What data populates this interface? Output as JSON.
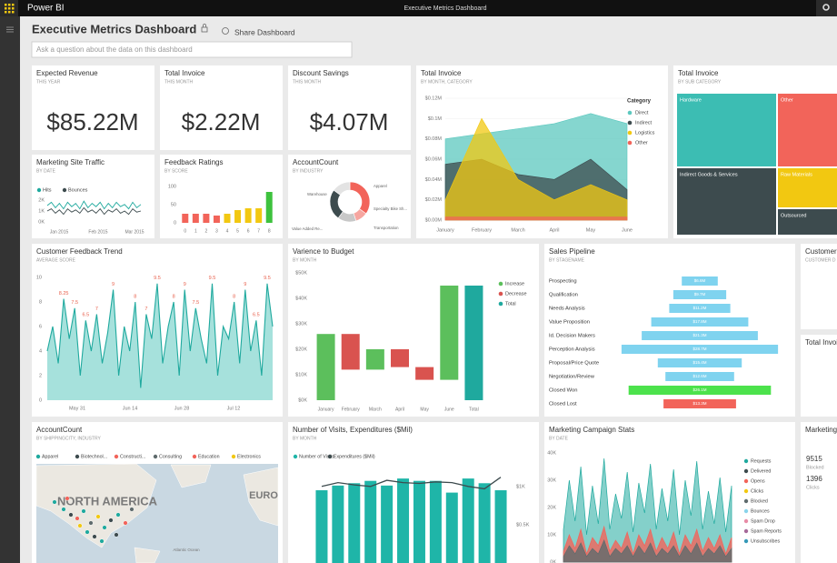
{
  "app": {
    "brand": "Power BI",
    "window_title": "Executive Metrics Dashboard"
  },
  "header": {
    "title": "Executive Metrics Dashboard",
    "share": "Share Dashboard",
    "qna_placeholder": "Ask a question about the data on this dashboard"
  },
  "cards": [
    {
      "title": "Expected Revenue",
      "subtitle": "THIS YEAR",
      "value": "$85.22M"
    },
    {
      "title": "Total Invoice",
      "subtitle": "THIS MONTH",
      "value": "$2.22M"
    },
    {
      "title": "Discount Savings",
      "subtitle": "THIS MONTH",
      "value": "$4.07M"
    }
  ],
  "invoice_area": {
    "type": "area",
    "title": "Total Invoice",
    "subtitle": "BY MONTH, CATEGORY",
    "categories": [
      "January",
      "February",
      "March",
      "April",
      "May",
      "June"
    ],
    "ylim": [
      0,
      0.12
    ],
    "yticks": [
      {
        "value": 0,
        "label": "$0.00M"
      },
      {
        "value": 0.02,
        "label": "$0.02M"
      },
      {
        "value": 0.04,
        "label": "$0.04M"
      },
      {
        "value": 0.06,
        "label": "$0.06M"
      },
      {
        "value": 0.08,
        "label": "$0.08M"
      },
      {
        "value": 0.1,
        "label": "$0.1M"
      },
      {
        "value": 0.12,
        "label": "$0.12M"
      }
    ],
    "legend_title": "Category",
    "series": [
      {
        "name": "Direct",
        "color": "#5cc8bf",
        "values": [
          0.08,
          0.085,
          0.09,
          0.095,
          0.105,
          0.095
        ]
      },
      {
        "name": "Indirect",
        "color": "#3d4b4e",
        "values": [
          0.055,
          0.06,
          0.045,
          0.04,
          0.06,
          0.03
        ]
      },
      {
        "name": "Logistics",
        "color": "#f2c811",
        "values": [
          0.02,
          0.1,
          0.04,
          0.02,
          0.035,
          0.02
        ]
      },
      {
        "name": "Other",
        "color": "#f2645a",
        "values": [
          0.003,
          0.003,
          0.003,
          0.003,
          0.003,
          0.003
        ]
      }
    ]
  },
  "invoice_treemap": {
    "title": "Total Invoice",
    "subtitle": "BY SUB CATEGORY",
    "cells": [
      "Hardware",
      "Other",
      "Indirect Goods & Services",
      "Raw Materials",
      "Outsourced"
    ]
  },
  "site_traffic": {
    "type": "line",
    "title": "Marketing Site Traffic",
    "subtitle": "BY DATE",
    "x_labels": [
      "Jan 2015",
      "Feb 2015",
      "Mar 2015"
    ],
    "ylim": [
      0,
      2
    ],
    "yticks": [
      {
        "value": 0,
        "label": "0K"
      },
      {
        "value": 1,
        "label": "1K"
      },
      {
        "value": 2,
        "label": "2K"
      }
    ],
    "series": [
      {
        "name": "Hits",
        "color": "#1fa99e",
        "values": [
          1.5,
          1.8,
          1.3,
          1.7,
          1.2,
          1.8,
          1.4,
          1.7,
          1.2,
          1.9,
          1.3,
          1.7,
          1.4,
          1.8,
          1.2,
          1.7,
          1.3,
          1.8,
          1.4,
          1.6,
          1.2,
          1.8,
          1.3,
          1.6
        ]
      },
      {
        "name": "Bounces",
        "color": "#3d4b4e",
        "values": [
          1.0,
          1.2,
          0.8,
          1.1,
          0.7,
          1.2,
          0.9,
          1.1,
          0.8,
          1.3,
          0.9,
          1.1,
          0.8,
          1.2,
          0.7,
          1.1,
          0.9,
          1.2,
          0.8,
          1.0,
          0.7,
          1.2,
          0.9,
          1.0
        ]
      }
    ]
  },
  "feedback_ratings": {
    "type": "bar",
    "title": "Feedback Ratings",
    "subtitle": "BY SCORE",
    "categories": [
      "0",
      "1",
      "2",
      "3",
      "4",
      "5",
      "6",
      "7",
      "8"
    ],
    "values": [
      25,
      25,
      25,
      20,
      25,
      35,
      40,
      40,
      85
    ],
    "colors": [
      "#f2645a",
      "#f2645a",
      "#f2645a",
      "#f2645a",
      "#f2c811",
      "#f2c811",
      "#f2c811",
      "#f2c811",
      "#3ec23e"
    ],
    "ylim": [
      0,
      100
    ],
    "yticks": [
      0,
      50,
      100
    ]
  },
  "account_donut": {
    "type": "pie",
    "title": "AccountCount",
    "subtitle": "BY INDUSTRY",
    "categories": [
      "Warehouse",
      "Apparel",
      "Specialty Bike Sh...",
      "Transportation",
      "Value Added Re..."
    ],
    "values": [
      35,
      10,
      15,
      25,
      15
    ],
    "colors": [
      "#f2645a",
      "#f6a6a0",
      "#c8c8c8",
      "#3d4b4e",
      "#e3e3e3"
    ]
  },
  "feedback_trend": {
    "type": "area",
    "title": "Customer Feedback Trend",
    "subtitle": "AVERAGE SCORE",
    "x_labels": [
      "May 31",
      "Jun 14",
      "Jun 28",
      "Jul 12"
    ],
    "ylim": [
      0,
      10
    ],
    "yticks": [
      0,
      2,
      4,
      6,
      8,
      10
    ],
    "color": "#1fa99e",
    "values": [
      4,
      6,
      3,
      8.25,
      5,
      7.5,
      2,
      6.5,
      4,
      7,
      3,
      5.5,
      9,
      2,
      6,
      4,
      8,
      1,
      7,
      5,
      9.5,
      3,
      6,
      8,
      2,
      9,
      4,
      7.5,
      5,
      3,
      9.5,
      2,
      6,
      5,
      8,
      3,
      9,
      4,
      6.5,
      2,
      9.5,
      6
    ],
    "value_labels": [
      null,
      null,
      null,
      "8.25",
      null,
      "7.5",
      null,
      "6.5",
      null,
      "7",
      null,
      null,
      "9",
      null,
      null,
      null,
      "8",
      null,
      "7",
      null,
      "9.5",
      null,
      null,
      "8",
      null,
      "9",
      null,
      "7.5",
      null,
      null,
      "9.5",
      null,
      null,
      null,
      "8",
      null,
      "9",
      null,
      "6.5",
      null,
      "9.5",
      null
    ]
  },
  "variance": {
    "type": "waterfall",
    "title": "Varience to Budget",
    "subtitle": "BY MONTH",
    "categories": [
      "January",
      "February",
      "March",
      "April",
      "May",
      "June",
      "Total"
    ],
    "values": [
      26,
      -14,
      8,
      -7,
      -5,
      37,
      45
    ],
    "ylim": [
      0,
      50
    ],
    "yticks": [
      {
        "value": 0,
        "label": "$0K"
      },
      {
        "value": 10,
        "label": "$10K"
      },
      {
        "value": 20,
        "label": "$20K"
      },
      {
        "value": 30,
        "label": "$30K"
      },
      {
        "value": 40,
        "label": "$40K"
      },
      {
        "value": 50,
        "label": "$50K"
      }
    ],
    "series": [
      {
        "name": "Increase",
        "color": "#5cbf5c"
      },
      {
        "name": "Decrease",
        "color": "#d9534f"
      },
      {
        "name": "Total",
        "color": "#1fa99e"
      }
    ]
  },
  "pipeline": {
    "type": "funnel",
    "title": "Sales Pipeline",
    "subtitle": "BY STAGENAME",
    "categories": [
      "Prospecting",
      "Qualification",
      "Needs Analysis",
      "Value Proposition",
      "Id. Decision Makers",
      "Perception Analysis",
      "Proposal/Price Quote",
      "Negotiation/Review",
      "Closed Won",
      "Closed Lost"
    ],
    "values": [
      6.6,
      9.7,
      11.2,
      17.8,
      21.3,
      28.7,
      15.4,
      12.6,
      26.1,
      13.3
    ],
    "value_labels": [
      "$6.6M",
      "$9.7M",
      "$11.2M",
      "$17.8M",
      "$21.3M",
      "$28.7M",
      "$15.4M",
      "$12.6M",
      "$26.1M",
      "$13.3M"
    ],
    "colors": [
      "#7fd3ef",
      "#7fd3ef",
      "#7fd3ef",
      "#7fd3ef",
      "#7fd3ef",
      "#7fd3ef",
      "#7fd3ef",
      "#7fd3ef",
      "#4ce24c",
      "#f2645a"
    ]
  },
  "account_map": {
    "title": "AccountCount",
    "subtitle": "BY SHIPPINGCITY, INDUSTRY",
    "legend": [
      {
        "name": "Apparel",
        "color": "#1fa99e"
      },
      {
        "name": "Biotechnol...",
        "color": "#3d4b4e"
      },
      {
        "name": "Constructi...",
        "color": "#f2645a"
      },
      {
        "name": "Consulting",
        "color": "#5f6b6d"
      },
      {
        "name": "Education",
        "color": "#f2645a"
      },
      {
        "name": "Electronics",
        "color": "#f2c811"
      }
    ],
    "labels": [
      "NORTH AMERICA",
      "EURO",
      "Atlantic Ocean"
    ]
  },
  "visits": {
    "type": "bar-line",
    "title": "Number of Visits, Expenditures ($Mil)",
    "subtitle": "BY MONTH",
    "ylim": [
      0,
      1
    ],
    "y2lim": [
      0,
      1.2
    ],
    "y2ticks": [
      {
        "value": 0.5,
        "label": "$0.5K"
      },
      {
        "value": 1,
        "label": "$1K"
      }
    ],
    "series": [
      {
        "name": "Number of Visits",
        "color": "#1fb5a8",
        "values": [
          0.62,
          0.66,
          0.68,
          0.7,
          0.66,
          0.72,
          0.7,
          0.7,
          0.6,
          0.72,
          0.68,
          0.62
        ]
      },
      {
        "name": "Expenditures ($Mil)",
        "color": "#3d4b4e",
        "axis": "y2",
        "values": [
          1.0,
          1.05,
          1.02,
          1.0,
          1.08,
          1.05,
          1.04,
          1.06,
          1.05,
          1.0,
          0.97,
          1.12
        ]
      }
    ]
  },
  "campaign": {
    "type": "area",
    "title": "Marketing Campaign Stats",
    "subtitle": "BY DATE",
    "ylim": [
      0,
      40
    ],
    "yticks": [
      {
        "value": 0,
        "label": "0K"
      },
      {
        "value": 10,
        "label": "10K"
      },
      {
        "value": 20,
        "label": "20K"
      },
      {
        "value": 30,
        "label": "30K"
      },
      {
        "value": 40,
        "label": "40K"
      }
    ],
    "series": [
      {
        "name": "Requests",
        "color": "#1fa99e",
        "values": [
          12,
          30,
          15,
          35,
          10,
          28,
          14,
          38,
          12,
          25,
          16,
          33,
          11,
          29,
          18,
          36,
          12,
          27,
          15,
          34,
          10,
          30,
          17,
          37,
          12,
          26,
          14,
          31,
          11,
          28
        ]
      },
      {
        "name": "Delivered",
        "color": "#3d4b4e"
      },
      {
        "name": "Opens",
        "color": "#f2645a",
        "values": [
          4,
          10,
          5,
          12,
          3,
          9,
          6,
          13,
          4,
          8,
          5,
          11,
          3,
          10,
          6,
          12,
          4,
          9,
          5,
          11,
          3,
          10,
          6,
          12,
          4,
          9,
          5,
          10,
          3,
          9
        ]
      },
      {
        "name": "Clicks",
        "color": "#f2c811"
      },
      {
        "name": "Blocked",
        "color": "#5f6b6d",
        "values": [
          2,
          6,
          3,
          7,
          2,
          5,
          3,
          8,
          2,
          5,
          3,
          6,
          2,
          6,
          3,
          7,
          2,
          5,
          3,
          6,
          2,
          6,
          3,
          7,
          2,
          5,
          3,
          6,
          2,
          5
        ]
      },
      {
        "name": "Bounces",
        "color": "#8ad4eb"
      },
      {
        "name": "Spam Drop",
        "color": "#e88ba6"
      },
      {
        "name": "Spam Reports",
        "color": "#a66999"
      },
      {
        "name": "Unsubscribes",
        "color": "#3599b8"
      }
    ]
  },
  "side_tiles": [
    {
      "title": "Customer",
      "subtitle": "CUSTOMER D"
    },
    {
      "title": "Total Invoi"
    },
    {
      "title": "Marketing",
      "stats": [
        {
          "value": "9515",
          "label": "Blocked"
        },
        {
          "value": "1396",
          "label": "Clicks"
        }
      ]
    }
  ]
}
